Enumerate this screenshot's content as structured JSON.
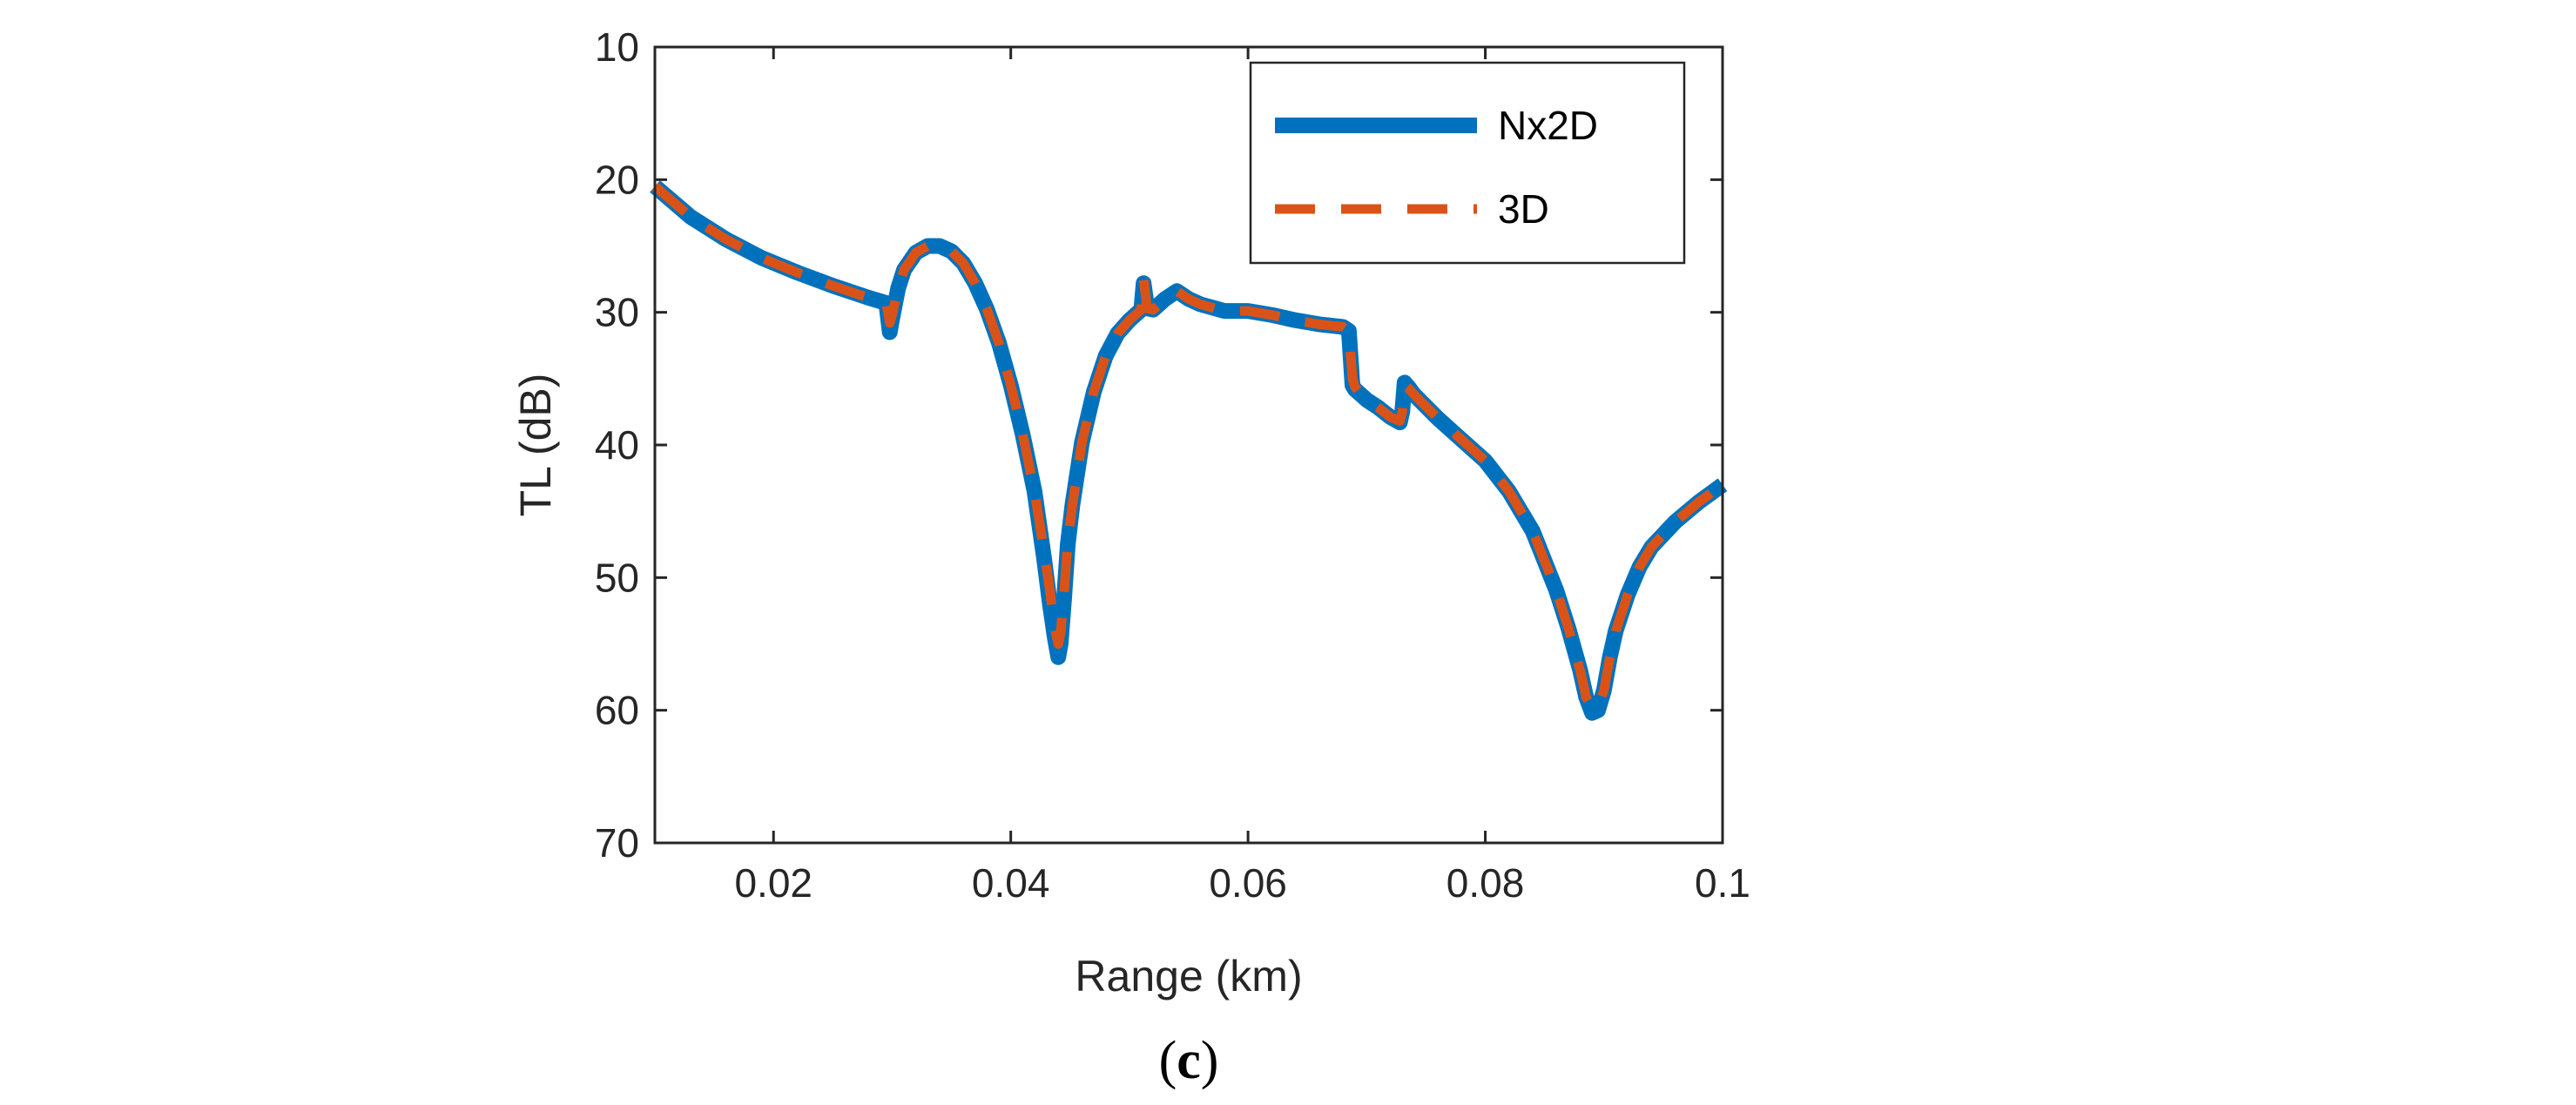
{
  "colors": {
    "nx2d": "#0072BD",
    "threed": "#D95319",
    "axis": "#262626"
  },
  "caption": {
    "open": "(",
    "letter": "c",
    "close": ")"
  },
  "chart_data": {
    "type": "line",
    "title": "",
    "xlabel": "Range (km)",
    "ylabel": "TL (dB)",
    "xlim": [
      0.01,
      0.1
    ],
    "ylim": [
      10,
      70
    ],
    "y_reversed": true,
    "grid": false,
    "legend_position": "top-right",
    "xticks": [
      0.02,
      0.04,
      0.06,
      0.08,
      0.1
    ],
    "xtick_labels": [
      "0.02",
      "0.04",
      "0.06",
      "0.08",
      "0.1"
    ],
    "yticks": [
      10,
      20,
      30,
      40,
      50,
      60,
      70
    ],
    "ytick_labels": [
      "10",
      "20",
      "30",
      "40",
      "50",
      "60",
      "70"
    ],
    "series": [
      {
        "name": "Nx2D",
        "style": "solid",
        "x": [
          0.01,
          0.013,
          0.016,
          0.019,
          0.022,
          0.025,
          0.028,
          0.0295,
          0.0298,
          0.03,
          0.0305,
          0.031,
          0.032,
          0.033,
          0.034,
          0.035,
          0.036,
          0.037,
          0.038,
          0.039,
          0.04,
          0.041,
          0.042,
          0.0428,
          0.0433,
          0.0437,
          0.044,
          0.0442,
          0.0445,
          0.0448,
          0.0452,
          0.046,
          0.047,
          0.048,
          0.049,
          0.05,
          0.0505,
          0.051,
          0.0512,
          0.0515,
          0.052,
          0.053,
          0.054,
          0.055,
          0.056,
          0.058,
          0.06,
          0.062,
          0.064,
          0.066,
          0.068,
          0.0685,
          0.0688,
          0.069,
          0.0695,
          0.07,
          0.071,
          0.072,
          0.0728,
          0.073,
          0.0732,
          0.0735,
          0.074,
          0.076,
          0.078,
          0.08,
          0.082,
          0.084,
          0.086,
          0.087,
          0.088,
          0.0885,
          0.089,
          0.0895,
          0.09,
          0.0905,
          0.091,
          0.092,
          0.093,
          0.094,
          0.096,
          0.098,
          0.1
        ],
        "y": [
          20.5,
          22.8,
          24.5,
          25.9,
          27.0,
          28.0,
          28.9,
          29.3,
          31.5,
          30.5,
          28.2,
          26.8,
          25.5,
          25.0,
          25.0,
          25.4,
          26.3,
          27.8,
          29.8,
          32.3,
          35.5,
          39.2,
          43.5,
          48.5,
          52.0,
          54.5,
          56.0,
          55.0,
          51.5,
          47.5,
          44.5,
          39.8,
          36.0,
          33.3,
          31.6,
          30.6,
          30.2,
          29.8,
          27.8,
          29.7,
          29.8,
          29.0,
          28.4,
          29.0,
          29.4,
          29.9,
          29.9,
          30.2,
          30.6,
          30.9,
          31.1,
          31.4,
          35.5,
          35.8,
          36.2,
          36.6,
          37.2,
          37.9,
          38.3,
          37.5,
          35.3,
          35.6,
          36.2,
          38.0,
          39.6,
          41.2,
          43.5,
          46.5,
          51.0,
          53.8,
          57.0,
          59.0,
          60.2,
          60.0,
          58.5,
          56.0,
          54.0,
          51.3,
          49.2,
          47.7,
          45.8,
          44.3,
          43.0
        ]
      },
      {
        "name": "3D",
        "style": "dashed",
        "x": [
          0.01,
          0.013,
          0.016,
          0.019,
          0.022,
          0.025,
          0.028,
          0.0295,
          0.0298,
          0.03,
          0.0305,
          0.031,
          0.032,
          0.033,
          0.034,
          0.035,
          0.036,
          0.037,
          0.038,
          0.039,
          0.04,
          0.041,
          0.042,
          0.0428,
          0.0433,
          0.0437,
          0.044,
          0.0442,
          0.0445,
          0.0448,
          0.0452,
          0.046,
          0.047,
          0.048,
          0.049,
          0.05,
          0.0505,
          0.051,
          0.0512,
          0.0515,
          0.052,
          0.053,
          0.054,
          0.055,
          0.056,
          0.058,
          0.06,
          0.062,
          0.064,
          0.066,
          0.068,
          0.0685,
          0.0688,
          0.069,
          0.0695,
          0.07,
          0.071,
          0.072,
          0.0728,
          0.073,
          0.0732,
          0.0735,
          0.074,
          0.076,
          0.078,
          0.08,
          0.082,
          0.084,
          0.086,
          0.087,
          0.088,
          0.0885,
          0.089,
          0.0895,
          0.09,
          0.0905,
          0.091,
          0.092,
          0.093,
          0.094,
          0.096,
          0.098,
          0.1
        ],
        "y": [
          20.5,
          22.8,
          24.5,
          25.9,
          27.0,
          28.0,
          28.9,
          29.3,
          30.8,
          30.2,
          28.2,
          26.8,
          25.5,
          25.0,
          25.0,
          25.4,
          26.3,
          27.8,
          29.8,
          32.3,
          35.5,
          39.2,
          43.5,
          48.0,
          51.0,
          53.8,
          55.0,
          54.2,
          51.0,
          47.3,
          44.5,
          39.8,
          36.0,
          33.3,
          31.6,
          30.6,
          30.2,
          29.8,
          27.5,
          29.7,
          29.8,
          29.0,
          28.4,
          29.0,
          29.4,
          29.9,
          29.9,
          30.2,
          30.6,
          30.9,
          31.1,
          31.4,
          35.0,
          35.6,
          36.2,
          36.6,
          37.2,
          37.9,
          38.2,
          37.5,
          35.5,
          35.7,
          36.2,
          38.0,
          39.6,
          41.2,
          43.5,
          46.5,
          51.0,
          53.8,
          57.0,
          59.0,
          59.8,
          59.8,
          58.5,
          56.0,
          54.0,
          51.3,
          49.2,
          47.7,
          45.8,
          44.3,
          43.0
        ]
      }
    ]
  }
}
